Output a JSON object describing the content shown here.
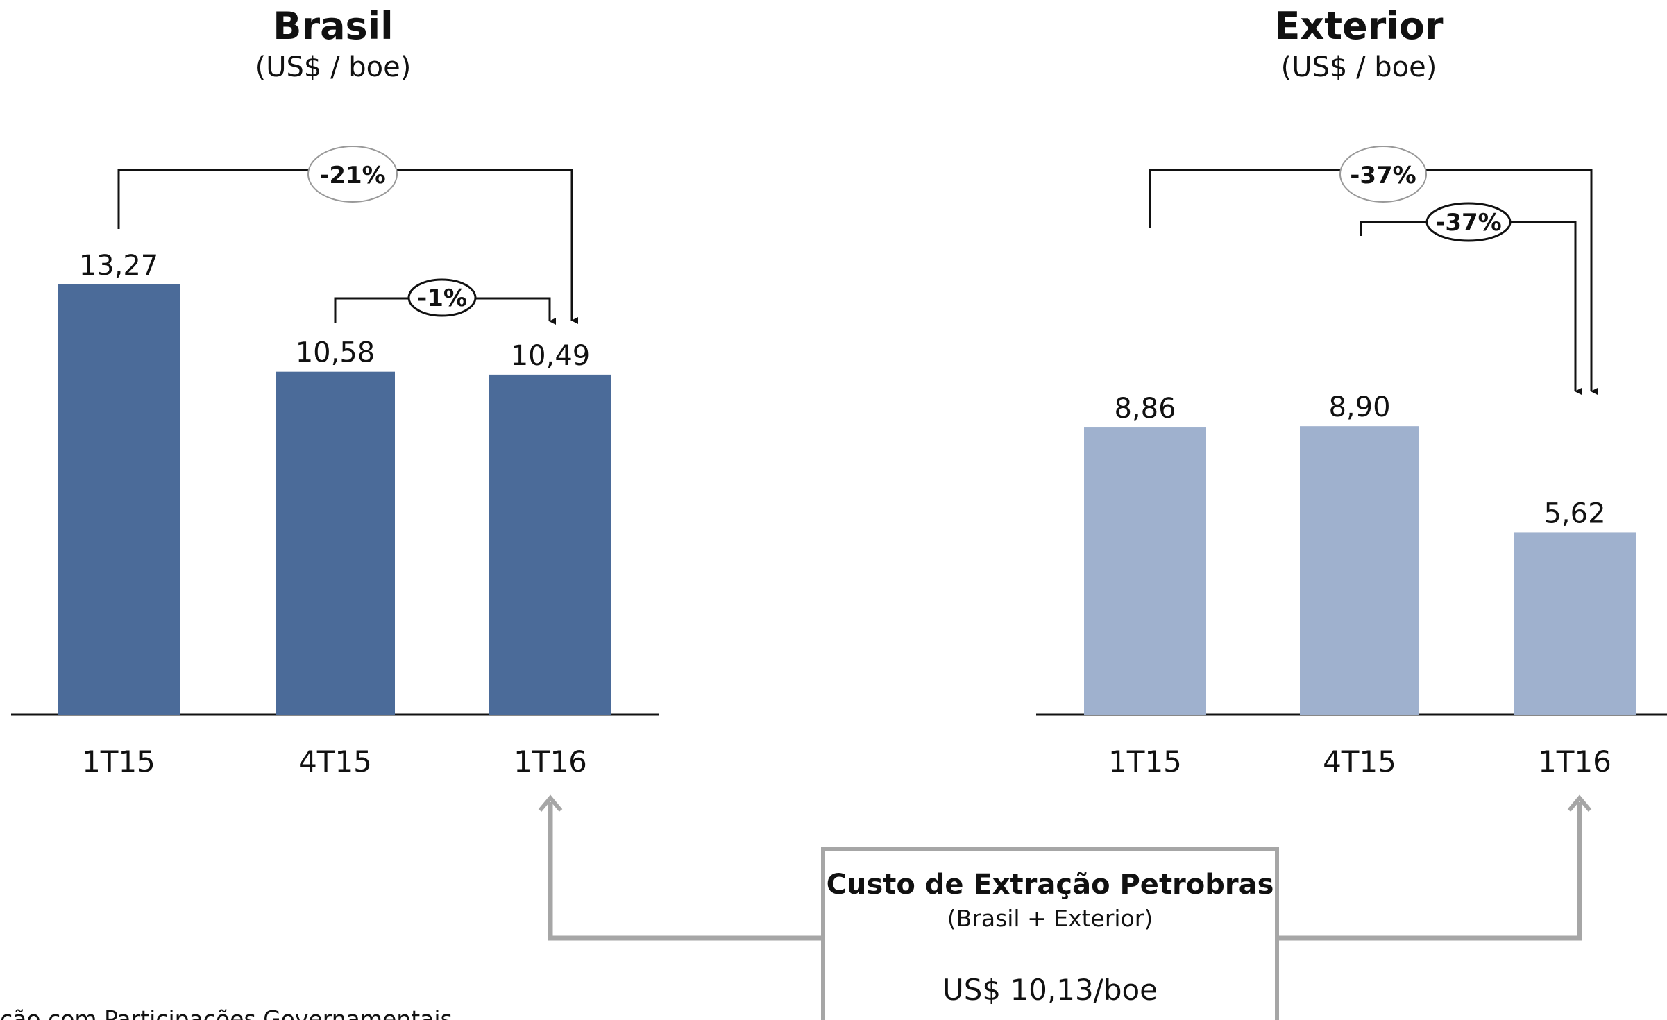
{
  "chart_data": [
    {
      "type": "bar",
      "title": "Brasil",
      "subtitle": "(US$ / boe)",
      "categories": [
        "1T15",
        "4T15",
        "1T16"
      ],
      "values": [
        13.27,
        10.58,
        10.49
      ],
      "value_labels": [
        "13,27",
        "10,58",
        "10,49"
      ],
      "color": "#4b6b99",
      "ylim": [
        0,
        13.27
      ],
      "xlabel": "",
      "ylabel": "",
      "grid": false,
      "annotations": [
        {
          "label": "-21%",
          "from": "1T15",
          "to": "1T16",
          "style": "oval-light"
        },
        {
          "label": "-1%",
          "from": "4T15",
          "to": "1T16",
          "style": "oval-bold"
        }
      ]
    },
    {
      "type": "bar",
      "title": "Exterior",
      "subtitle": "(US$ / boe)",
      "categories": [
        "1T15",
        "4T15",
        "1T16"
      ],
      "values": [
        8.86,
        8.9,
        5.62
      ],
      "value_labels": [
        "8,86",
        "8,90",
        "5,62"
      ],
      "color": "#9fb1ce",
      "ylim": [
        0,
        13.27
      ],
      "xlabel": "",
      "ylabel": "",
      "grid": false,
      "annotations": [
        {
          "label": "-37%",
          "from": "1T15",
          "to": "1T16",
          "style": "oval-light"
        },
        {
          "label": "-37%",
          "from": "4T15",
          "to": "1T16",
          "style": "oval-bold"
        }
      ]
    }
  ],
  "summary_box": {
    "title": "Custo de Extração Petrobras",
    "subtitle": "(Brasil + Exterior)",
    "value": "US$ 10,13/boe"
  },
  "footnote": "ção com Participações Governamentais",
  "colors": {
    "connector": "#a6a6a6",
    "axis": "#111111"
  }
}
